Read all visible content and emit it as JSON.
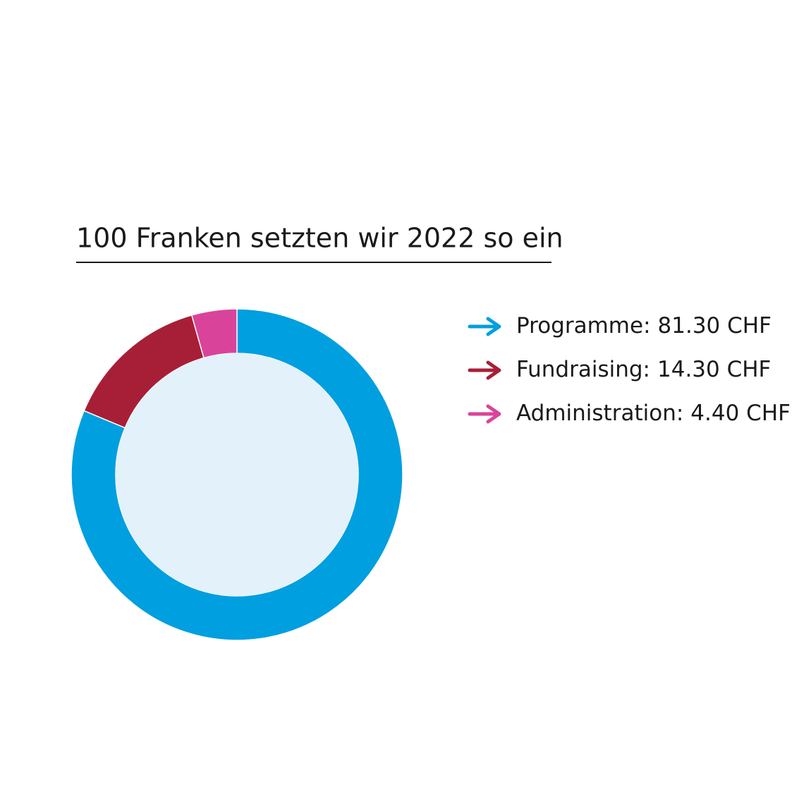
{
  "chart_data": {
    "type": "donut",
    "title": "100 Franken setzten wir 2022 so ein",
    "categories": [
      "Programme:",
      "Fundraising:",
      "Administration:"
    ],
    "values": [
      81.3,
      14.3,
      4.4
    ],
    "value_labels": [
      "81.30 CHF",
      "14.30 CHF",
      "4.40 CHF"
    ],
    "colors": [
      "#009fdf",
      "#a71f36",
      "#d9449a"
    ],
    "legend": "right"
  }
}
